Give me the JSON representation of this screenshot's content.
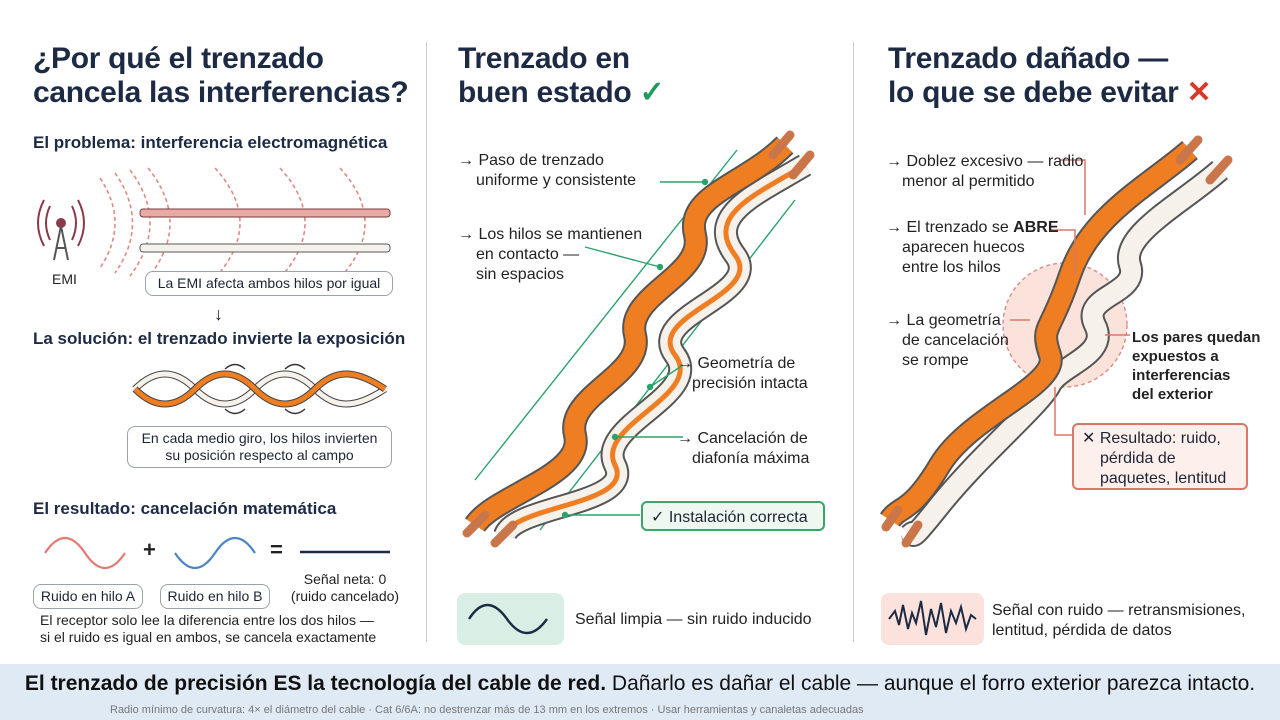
{
  "left": {
    "title_line1": "¿Por qué el trenzado",
    "title_line2": "cancela las interferencias?",
    "problem_heading": "El problema: interferencia electromagnética",
    "emi_label": "EMI",
    "emi_caption": "La EMI afecta ambos hilos por igual",
    "solution_heading": "La solución: el trenzado invierte la exposición",
    "solution_caption_line1": "En cada medio giro, los hilos invierten",
    "solution_caption_line2": "su posición respecto al campo",
    "result_heading": "El resultado: cancelación matemática",
    "plus": "+",
    "equals": "=",
    "noise_a": "Ruido en hilo A",
    "noise_b": "Ruido en hilo B",
    "net_line1": "Señal neta: 0",
    "net_line2": "(ruido cancelado)",
    "receiver_line1": "El receptor solo lee la diferencia entre los dos hilos —",
    "receiver_line2": "si el ruido es igual en ambos, se cancela exactamente"
  },
  "middle": {
    "title_line1": "Trenzado en",
    "title_line2": "buen estado",
    "check_symbol": "✓",
    "callouts": [
      {
        "line1": "→ Paso de trenzado",
        "line2": "uniforme y consistente"
      },
      {
        "line1": "→ Los hilos se mantienen",
        "line2": "en contacto —",
        "line3": "sin espacios"
      },
      {
        "line1": "→ Geometría de",
        "line2": "precisión intacta"
      },
      {
        "line1": "→ Cancelación de",
        "line2": "diafonía máxima"
      }
    ],
    "ok_label": "✓ Instalación correcta",
    "signal_text": "Señal limpia — sin ruido inducido"
  },
  "right": {
    "title_line1": "Trenzado dañado —",
    "title_line2": "lo que se debe evitar",
    "x_symbol": "✕",
    "callout1_line1": "→ Doblez excesivo — radio",
    "callout1_line2": "menor al permitido",
    "callout2_pre": "→ El trenzado se ",
    "callout2_bold": "ABRE",
    "callout2_line2": "aparecen huecos",
    "callout2_line3": "entre los hilos",
    "callout3_line1": "→ La geometría",
    "callout3_line2": "de cancelación",
    "callout3_line3": "se rompe",
    "exposed_line1": "Los pares quedan",
    "exposed_line2": "expuestos a",
    "exposed_line3": "interferencias",
    "exposed_line4": "del exterior",
    "result_line1": "✕ Resultado: ruido,",
    "result_line2": "pérdida de",
    "result_line3": "paquetes, lentitud",
    "signal_line1": "Señal con ruido — retransmisiones,",
    "signal_line2": "lentitud, pérdida de datos"
  },
  "footer": {
    "bold": "El trenzado de precisión ES la tecnología del cable de red.",
    "rest": " Dañarlo es dañar el cable — aunque el forro exterior parezca intacto.",
    "sub": "Radio mínimo de curvatura: 4× el diámetro del cable · Cat 6/6A: no destrenzar más de 13 mm en los extremos · Usar herramientas y canaletas adecuadas"
  },
  "colors": {
    "orange": "#ef7d22",
    "white_wire": "#f6f1ea",
    "copper": "#c9774a",
    "green": "#1f9a5a",
    "red": "#d63b2a",
    "navy": "#1c2a44"
  }
}
